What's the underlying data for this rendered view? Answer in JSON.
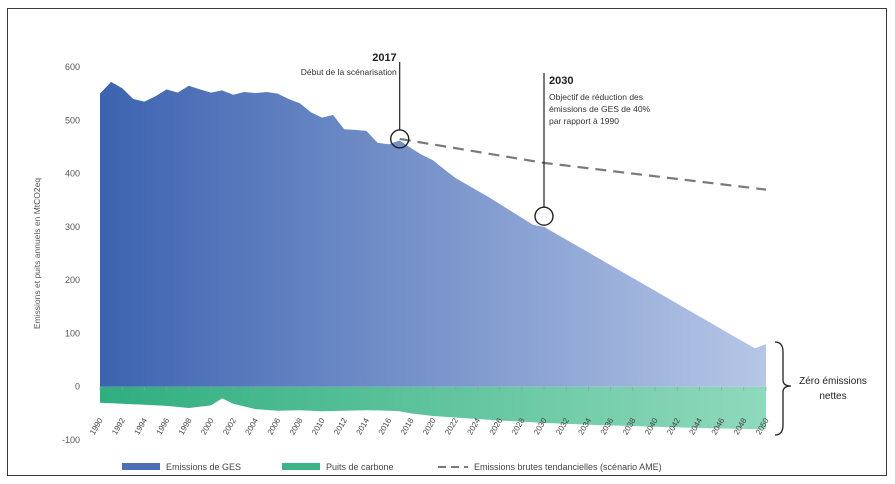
{
  "chart_data": {
    "type": "area",
    "ylabel": "Emissions et puits annuels en MtCO2eq",
    "ylim": [
      -100,
      600
    ],
    "yticks": [
      -100,
      0,
      100,
      200,
      300,
      400,
      500,
      600
    ],
    "xlim": [
      1990,
      2050
    ],
    "xticks": [
      1990,
      1992,
      1994,
      1996,
      1998,
      2000,
      2002,
      2004,
      2006,
      2008,
      2010,
      2012,
      2014,
      2016,
      2018,
      2020,
      2022,
      2024,
      2026,
      2028,
      2030,
      2032,
      2034,
      2036,
      2038,
      2040,
      2042,
      2044,
      2046,
      2048,
      2050
    ],
    "grid": false,
    "legend_position": "bottom",
    "series": [
      {
        "name": "Emissions de GES",
        "color": "#4a6fb8",
        "x": [
          1990,
          1991,
          1992,
          1993,
          1994,
          1995,
          1996,
          1997,
          1998,
          1999,
          2000,
          2001,
          2002,
          2003,
          2004,
          2005,
          2006,
          2007,
          2008,
          2009,
          2010,
          2011,
          2012,
          2013,
          2014,
          2015,
          2016,
          2017,
          2018,
          2019,
          2020,
          2021,
          2022,
          2023,
          2024,
          2025,
          2026,
          2027,
          2028,
          2029,
          2030,
          2031,
          2032,
          2033,
          2034,
          2035,
          2036,
          2037,
          2038,
          2039,
          2040,
          2041,
          2042,
          2043,
          2044,
          2045,
          2046,
          2047,
          2048,
          2049,
          2050
        ],
        "values": [
          550,
          572,
          560,
          540,
          535,
          545,
          558,
          552,
          565,
          558,
          552,
          556,
          548,
          553,
          551,
          553,
          550,
          540,
          532,
          515,
          505,
          510,
          483,
          482,
          480,
          458,
          455,
          462,
          448,
          435,
          425,
          408,
          392,
          380,
          368,
          356,
          343,
          330,
          317,
          304,
          300,
          288,
          276,
          264,
          252,
          240,
          228,
          216,
          204,
          192,
          180,
          168,
          156,
          144,
          132,
          120,
          108,
          96,
          84,
          72,
          80
        ]
      },
      {
        "name": "Puits de carbone",
        "color": "#3db387",
        "x": [
          1990,
          1992,
          1994,
          1996,
          1998,
          2000,
          2001,
          2002,
          2004,
          2006,
          2008,
          2010,
          2012,
          2014,
          2016,
          2017,
          2018,
          2020,
          2025,
          2030,
          2035,
          2040,
          2045,
          2050
        ],
        "values": [
          -30,
          -32,
          -34,
          -36,
          -40,
          -35,
          -22,
          -32,
          -42,
          -45,
          -44,
          -46,
          -45,
          -44,
          -45,
          -46,
          -50,
          -55,
          -62,
          -68,
          -72,
          -75,
          -78,
          -80
        ]
      },
      {
        "name": "Emissions brutes tendancielles (scénario AME)",
        "color": "#7a7a7a",
        "style": "dashed",
        "x": [
          2017,
          2030,
          2050
        ],
        "values": [
          465,
          420,
          370
        ]
      }
    ],
    "annotations": [
      {
        "year": "2017",
        "text": "Début de la scénarisation",
        "x": 2017,
        "y": 465
      },
      {
        "year": "2030",
        "text": [
          "Objectif de réduction des",
          "émissions de GES de 40%",
          "par rapport à 1990"
        ],
        "x": 2030,
        "y": 320
      }
    ],
    "bracket_label": [
      "Zéro émissions",
      "nettes"
    ]
  }
}
